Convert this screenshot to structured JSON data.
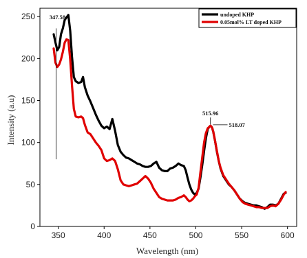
{
  "chart_data": {
    "type": "line",
    "xlabel": "Wavelength (nm)",
    "ylabel": "Intensity (a.u)",
    "xlim": [
      330,
      610
    ],
    "ylim": [
      0,
      260
    ],
    "xticks": [
      350,
      400,
      450,
      500,
      550,
      600
    ],
    "yticks": [
      0,
      50,
      100,
      150,
      200,
      250
    ],
    "grid": false,
    "legend_position": "top-right",
    "series": [
      {
        "name": "undoped KHP",
        "color": "#000000",
        "x": [
          345,
          347,
          349,
          351,
          353,
          355,
          357,
          359,
          361,
          363,
          365,
          367,
          369,
          372,
          375,
          377,
          379,
          382,
          385,
          388,
          391,
          394,
          397,
          400,
          403,
          406,
          409,
          412,
          415,
          418,
          421,
          424,
          427,
          430,
          433,
          436,
          439,
          442,
          445,
          448,
          451,
          454,
          457,
          460,
          463,
          466,
          469,
          472,
          475,
          478,
          481,
          484,
          487,
          489,
          491,
          493,
          495,
          497,
          499,
          501,
          503,
          505,
          507,
          509,
          511,
          513,
          515,
          516,
          517,
          518,
          519,
          521,
          523,
          525,
          527,
          530,
          533,
          536,
          539,
          542,
          545,
          548,
          551,
          554,
          557,
          560,
          563,
          566,
          569,
          572,
          575,
          578,
          581,
          584,
          587,
          590,
          593,
          596,
          598
        ],
        "values": [
          229,
          219,
          210,
          214,
          229,
          236,
          246,
          249,
          252,
          233,
          202,
          178,
          173,
          171,
          172,
          178,
          166,
          156,
          149,
          141,
          133,
          126,
          120,
          117,
          119,
          116,
          128,
          114,
          97,
          89,
          85,
          82,
          81,
          79,
          77,
          75,
          74,
          72,
          71,
          71,
          72,
          75,
          77,
          70,
          67,
          66,
          66,
          69,
          70,
          72,
          75,
          73,
          72,
          67,
          58,
          50,
          44,
          40,
          38,
          40,
          45,
          58,
          73,
          90,
          105,
          116,
          119,
          120,
          119,
          117,
          113,
          102,
          89,
          78,
          69,
          60,
          55,
          50,
          47,
          43,
          38,
          33,
          30,
          28,
          27,
          26,
          25,
          25,
          24,
          23,
          21,
          23,
          26,
          26,
          25,
          27,
          33,
          39,
          40
        ]
      },
      {
        "name": "0.05mol% LT doped KHP",
        "color": "#e00000",
        "x": [
          345,
          347,
          349,
          351,
          353,
          355,
          357,
          359,
          361,
          363,
          365,
          367,
          369,
          372,
          375,
          377,
          379,
          382,
          385,
          388,
          391,
          394,
          397,
          400,
          403,
          406,
          409,
          412,
          415,
          418,
          421,
          424,
          427,
          430,
          433,
          436,
          439,
          442,
          445,
          448,
          451,
          454,
          457,
          460,
          463,
          466,
          469,
          472,
          475,
          478,
          481,
          484,
          487,
          489,
          491,
          493,
          495,
          497,
          499,
          501,
          503,
          505,
          507,
          509,
          511,
          513,
          515,
          516,
          517,
          518,
          519,
          521,
          523,
          525,
          527,
          530,
          533,
          536,
          539,
          542,
          545,
          548,
          551,
          554,
          557,
          560,
          563,
          566,
          569,
          572,
          575,
          578,
          581,
          584,
          587,
          590,
          593,
          596,
          598
        ],
        "values": [
          212,
          195,
          190,
          193,
          199,
          208,
          219,
          223,
          222,
          199,
          168,
          140,
          131,
          130,
          131,
          129,
          121,
          112,
          110,
          105,
          100,
          96,
          91,
          81,
          78,
          79,
          81,
          78,
          68,
          55,
          50,
          49,
          48,
          49,
          50,
          51,
          54,
          57,
          60,
          57,
          52,
          45,
          40,
          35,
          33,
          32,
          31,
          31,
          31,
          32,
          34,
          35,
          37,
          35,
          32,
          30,
          31,
          33,
          36,
          38,
          46,
          64,
          82,
          100,
          111,
          117,
          119,
          120,
          119,
          117,
          113,
          102,
          90,
          78,
          70,
          61,
          56,
          51,
          47,
          43,
          38,
          33,
          29,
          27,
          26,
          25,
          24,
          23,
          23,
          22,
          22,
          22,
          24,
          25,
          24,
          27,
          32,
          38,
          41
        ]
      }
    ],
    "annotations": [
      {
        "text": "347.58",
        "x": 347.58,
        "y": 241
      },
      {
        "text": "515.96",
        "x": 515.96,
        "y": 120
      },
      {
        "text": "518.07",
        "x": 518.07,
        "y": 117
      }
    ]
  }
}
